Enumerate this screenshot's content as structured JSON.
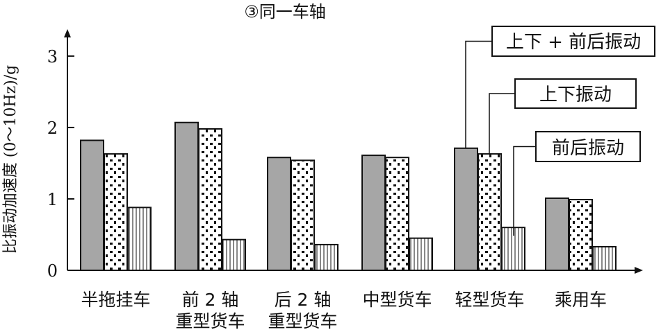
{
  "chart_data": {
    "type": "bar",
    "title": "③同一车轴",
    "ylabel": "比振动加速度 (0～10Hz)/g",
    "xlabel": "",
    "ylim": [
      0,
      3.3
    ],
    "yticks": [
      0,
      1,
      2,
      3
    ],
    "grid": false,
    "legend_position": "top-right",
    "categories": [
      "半拖挂车",
      "前 2 轴\n重型货车",
      "后 2 轴\n重型货车",
      "中型货车",
      "轻型货车",
      "乘用车"
    ],
    "series": [
      {
        "name": "上下 + 前后振动",
        "values": [
          1.82,
          2.07,
          1.58,
          1.61,
          1.71,
          1.01
        ]
      },
      {
        "name": "上下振动",
        "values": [
          1.63,
          1.98,
          1.54,
          1.58,
          1.63,
          0.99
        ]
      },
      {
        "name": "前后振动",
        "values": [
          0.88,
          0.43,
          0.36,
          0.45,
          0.6,
          0.33
        ]
      }
    ]
  }
}
